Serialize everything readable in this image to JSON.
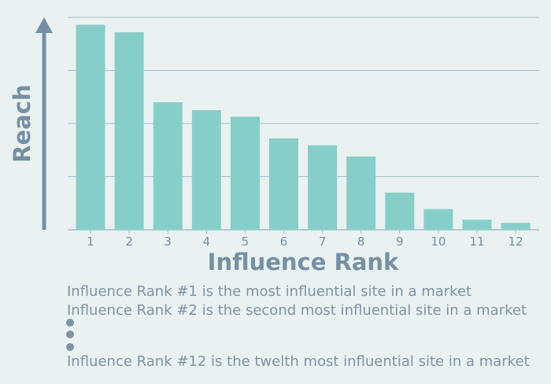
{
  "chart_data": {
    "type": "bar",
    "categories": [
      "1",
      "2",
      "3",
      "4",
      "5",
      "6",
      "7",
      "8",
      "9",
      "10",
      "11",
      "12"
    ],
    "values": [
      3.86,
      3.72,
      2.4,
      2.25,
      2.13,
      1.72,
      1.59,
      1.38,
      0.7,
      0.39,
      0.19,
      0.13
    ],
    "xlabel": "Influence Rank",
    "ylabel": "Reach",
    "ylim": [
      0,
      4
    ],
    "y_ticks_labeled": false,
    "grid": "horizontal",
    "bar_color": "#86cfc8",
    "axis_color": "#7590a5",
    "grid_color": "#a8bccb"
  },
  "notes": [
    "Influence Rank #1 is the most influential site in a market",
    "Influence Rank #2 is the second most influential site in a market",
    "Influence Rank #12 is the twelth most influential site in a market"
  ]
}
